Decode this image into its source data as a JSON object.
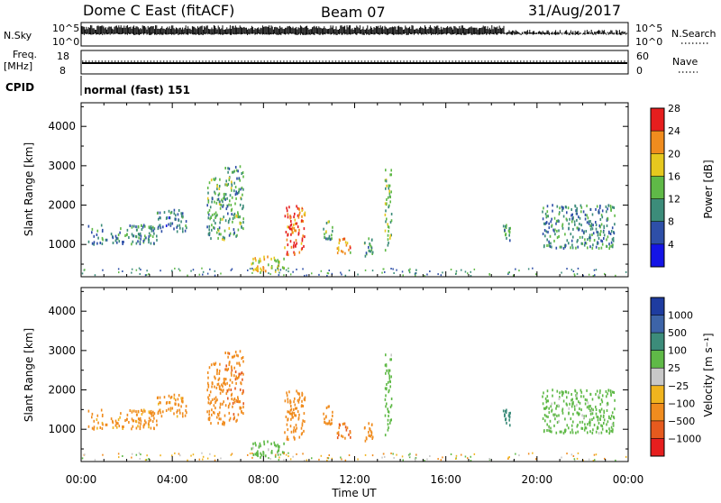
{
  "header": {
    "station": "Dome C East (fitACF)",
    "beam": "Beam 07",
    "date": "31/Aug/2017"
  },
  "strip_panels": {
    "nsky_label": "N.Sky",
    "nsky_top": "10^5",
    "nsky_bottom": "10^0",
    "nsearch_label": "N.Search",
    "nsearch_top": "10^5",
    "nsearch_bottom": "10^0",
    "freq_label_1": "Freq.",
    "freq_label_2": "[MHz]",
    "freq_top": "18",
    "freq_bottom": "8",
    "nave_label": "Nave",
    "nave_top": "60",
    "nave_bottom": "0",
    "cpid_label": "CPID",
    "cpid_value": "normal (fast) 151"
  },
  "x_axis": {
    "label": "Time UT",
    "ticks": [
      "00:00",
      "04:00",
      "08:00",
      "12:00",
      "16:00",
      "20:00",
      "00:00"
    ]
  },
  "power_panel": {
    "ylabel": "Slant Range [km]",
    "yticks": [
      "1000",
      "2000",
      "3000",
      "4000"
    ],
    "colorbar_label": "Power [dB]",
    "colorbar_ticks": [
      "4",
      "8",
      "12",
      "16",
      "20",
      "24",
      "28"
    ],
    "colors": [
      "#1414e6",
      "#2e4fa8",
      "#3c8c7a",
      "#5fb947",
      "#e6c81e",
      "#f08c1e",
      "#e61e1e"
    ]
  },
  "velocity_panel": {
    "ylabel": "Slant Range [km]",
    "yticks": [
      "1000",
      "2000",
      "3000",
      "4000"
    ],
    "colorbar_label": "Velocity [m s⁻¹]",
    "colorbar_ticks": [
      "1000",
      "500",
      "100",
      "25",
      "−25",
      "−100",
      "−500",
      "−1000"
    ],
    "colors": [
      "#1e3ca0",
      "#3d64a8",
      "#3c8c7a",
      "#5fb947",
      "#c8c8c8",
      "#f0b41e",
      "#f08c1e",
      "#e65a1e",
      "#e61e1e"
    ]
  },
  "chart_data": {
    "type": "heatmap",
    "x_range_hours": [
      0,
      24
    ],
    "y_range_km": [
      180,
      4600
    ],
    "echo_regions": [
      {
        "t0": 0.3,
        "t1": 3.3,
        "r0": 1000,
        "r1": 1500,
        "power": 10,
        "velocity": -150
      },
      {
        "t0": 3.3,
        "t1": 4.6,
        "r0": 1300,
        "r1": 1900,
        "power": 8,
        "velocity": -150
      },
      {
        "t0": 5.5,
        "t1": 6.3,
        "r0": 1100,
        "r1": 2700,
        "power": 12,
        "velocity": -250
      },
      {
        "t0": 6.3,
        "t1": 7.1,
        "r0": 1200,
        "r1": 3000,
        "power": 12,
        "velocity": -400
      },
      {
        "t0": 7.4,
        "t1": 8.9,
        "r0": 250,
        "r1": 700,
        "power": 18,
        "velocity": 60
      },
      {
        "t0": 8.9,
        "t1": 9.8,
        "r0": 700,
        "r1": 2000,
        "power": 24,
        "velocity": -200
      },
      {
        "t0": 10.6,
        "t1": 11.0,
        "r0": 1100,
        "r1": 1600,
        "power": 12,
        "velocity": -150
      },
      {
        "t0": 11.2,
        "t1": 11.8,
        "r0": 750,
        "r1": 1200,
        "power": 20,
        "velocity": -600
      },
      {
        "t0": 12.4,
        "t1": 12.8,
        "r0": 700,
        "r1": 1150,
        "power": 12,
        "velocity": -300
      },
      {
        "t0": 13.3,
        "t1": 13.6,
        "r0": 800,
        "r1": 2900,
        "power": 14,
        "velocity": 60
      },
      {
        "t0": 18.5,
        "t1": 18.8,
        "r0": 1100,
        "r1": 1500,
        "power": 12,
        "velocity": 200
      },
      {
        "t0": 20.2,
        "t1": 23.4,
        "r0": 900,
        "r1": 2000,
        "power": 10,
        "velocity": 60
      }
    ]
  }
}
